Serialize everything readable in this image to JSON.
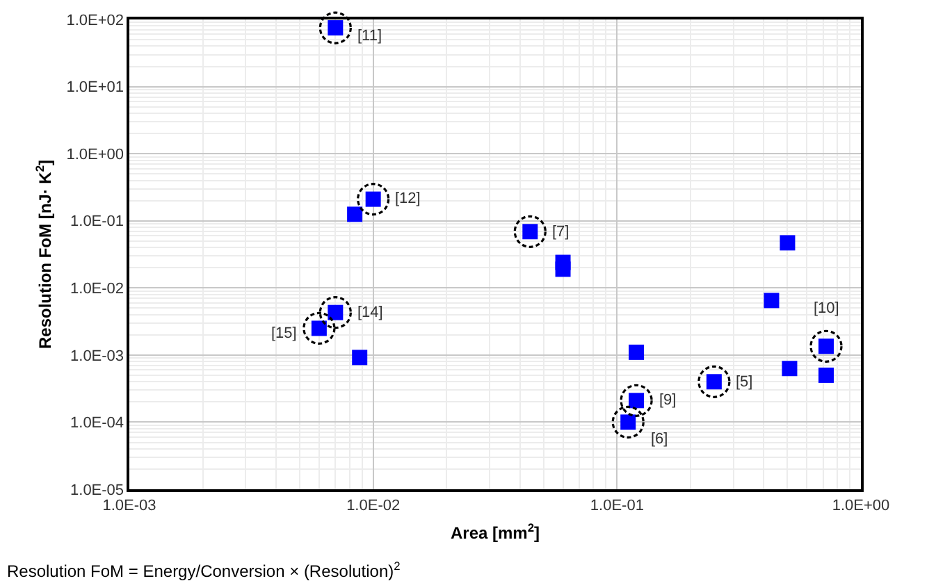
{
  "chart_data": {
    "type": "scatter",
    "xlabel": "Area [mm$^{2}$]",
    "ylabel": "Resolution FoM [nJ· K$^{2}$]",
    "log": "xy",
    "marker": "square",
    "grid": true,
    "xlim": [
      0.001,
      1
    ],
    "xticks": [
      {
        "value": 0.001,
        "label": "1.0E-03"
      },
      {
        "value": 0.01,
        "label": "1.0E-02"
      },
      {
        "value": 0.1,
        "label": "1.0E-01"
      },
      {
        "value": 1,
        "label": "1.0E+00"
      }
    ],
    "ylim": [
      1e-05,
      100
    ],
    "yticks": [
      {
        "value": 1e-05,
        "label": "1.0E-05"
      },
      {
        "value": 0.0001,
        "label": "1.0E-04"
      },
      {
        "value": 0.001,
        "label": "1.0E-03"
      },
      {
        "value": 0.01,
        "label": "1.0E-02"
      },
      {
        "value": 0.1,
        "label": "1.0E-01"
      },
      {
        "value": 1,
        "label": "1.0E+00"
      },
      {
        "value": 10,
        "label": "1.0E+01"
      },
      {
        "value": 100,
        "label": "1.0E+02"
      }
    ],
    "series": [
      {
        "color": "#0000ff",
        "x": [
          0.007,
          0.0084,
          0.01,
          0.044,
          0.06,
          0.06,
          0.5,
          0.007,
          0.006,
          0.0088,
          0.12,
          0.12,
          0.111,
          0.25,
          0.43,
          0.51,
          0.72,
          0.72
        ],
        "values": [
          75,
          0.125,
          0.21,
          0.069,
          0.024,
          0.019,
          0.047,
          0.0043,
          0.0025,
          0.00092,
          0.0011,
          0.00021,
          0.0001,
          0.0004,
          0.0065,
          0.00063,
          0.00135,
          0.0005
        ]
      }
    ],
    "annotations": [
      {
        "text": "[11]",
        "x": 0.007,
        "y": 75
      },
      {
        "text": "[12]",
        "x": 0.01,
        "y": 0.21
      },
      {
        "text": "[7]",
        "x": 0.044,
        "y": 0.069
      },
      {
        "text": "[14]",
        "x": 0.007,
        "y": 0.0043
      },
      {
        "text": "[15]",
        "x": 0.006,
        "y": 0.0025
      },
      {
        "text": "[9]",
        "x": 0.12,
        "y": 0.00021
      },
      {
        "text": "[6]",
        "x": 0.111,
        "y": 0.0001
      },
      {
        "text": "[5]",
        "x": 0.25,
        "y": 0.0004
      },
      {
        "text": "[10]",
        "x": 0.72,
        "y": 0.00135
      },
      "Resolution FoM = Energy/Conversion × (Resolution)$^{2}$"
    ]
  }
}
